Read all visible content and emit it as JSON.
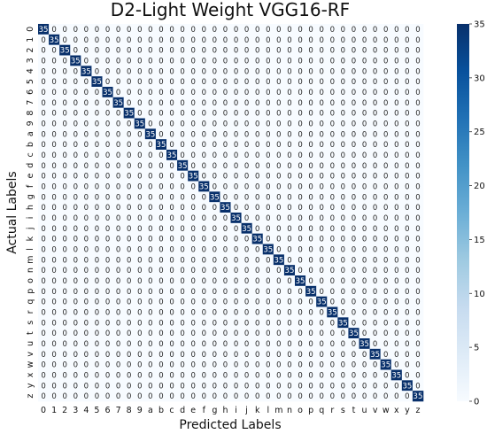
{
  "chart_data": {
    "type": "heatmap",
    "title": "D2-Light Weight VGG16-RF",
    "xlabel": "Predicted Labels",
    "ylabel": "Actual Labels",
    "x_categories": [
      "0",
      "1",
      "2",
      "3",
      "4",
      "5",
      "6",
      "7",
      "8",
      "9",
      "a",
      "b",
      "c",
      "d",
      "e",
      "f",
      "g",
      "h",
      "i",
      "j",
      "k",
      "l",
      "m",
      "n",
      "o",
      "p",
      "q",
      "r",
      "s",
      "t",
      "u",
      "v",
      "w",
      "x",
      "y",
      "z"
    ],
    "y_categories": [
      "0",
      "1",
      "2",
      "3",
      "4",
      "5",
      "6",
      "7",
      "8",
      "9",
      "a",
      "b",
      "c",
      "d",
      "e",
      "f",
      "g",
      "h",
      "i",
      "j",
      "k",
      "l",
      "m",
      "n",
      "o",
      "p",
      "q",
      "r",
      "s",
      "t",
      "u",
      "v",
      "w",
      "x",
      "y",
      "z"
    ],
    "matrix_rule": "diagonal cells = 35, all other cells = 0",
    "diagonal_value": 35,
    "off_diagonal_value": 0,
    "colorbar": {
      "min": 0,
      "max": 35,
      "ticks": [
        0,
        5,
        10,
        15,
        20,
        25,
        30,
        35
      ]
    },
    "colormap": {
      "low": "#f7fbff",
      "high": "#08306b"
    },
    "grid": false
  }
}
